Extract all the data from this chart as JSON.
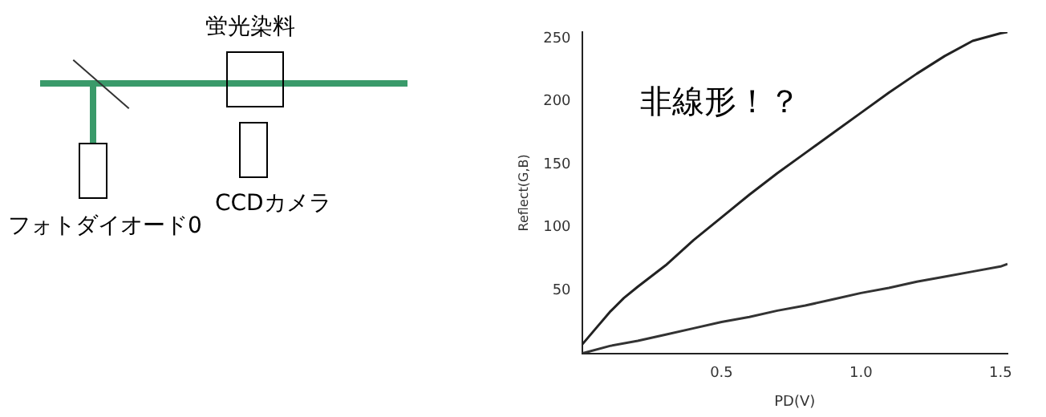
{
  "chart_data": {
    "type": "line",
    "xlabel": "PD(V)",
    "ylabel": "Reflect(G,B)",
    "annotations": [
      "非線形！？",
      "蛍光染料",
      "フォトダイオード0",
      "CCDカメラ"
    ],
    "xlim": [
      0,
      1.525
    ],
    "xticks": [
      0.5,
      {
        "value": 1,
        "label": "1.0"
      },
      1.5
    ],
    "ylim": [
      0,
      255
    ],
    "yticks": [
      50,
      100,
      150,
      200,
      250
    ],
    "grid": false,
    "legend": false,
    "marker": "none",
    "line_style": "solid",
    "series": [
      {
        "color": "#222222",
        "x": [
          0,
          0.05,
          0.1,
          0.15,
          0.2,
          0.3,
          0.4,
          0.5,
          0.6,
          0.7,
          0.8,
          0.9,
          1.0,
          1.1,
          1.2,
          1.3,
          1.4,
          1.5,
          1.525
        ],
        "values": [
          7,
          20,
          33,
          44,
          53,
          70,
          90,
          108,
          126,
          143,
          159,
          175,
          191,
          207,
          222,
          236,
          248,
          254,
          255
        ]
      },
      {
        "color": "#333333",
        "x": [
          0,
          0.1,
          0.2,
          0.3,
          0.4,
          0.5,
          0.6,
          0.7,
          0.8,
          0.9,
          1.0,
          1.1,
          1.2,
          1.3,
          1.4,
          1.5,
          1.525
        ],
        "values": [
          0,
          6,
          10,
          15,
          20,
          25,
          29,
          34,
          38,
          43,
          48,
          52,
          57,
          61,
          65,
          69,
          71
        ]
      }
    ]
  }
}
